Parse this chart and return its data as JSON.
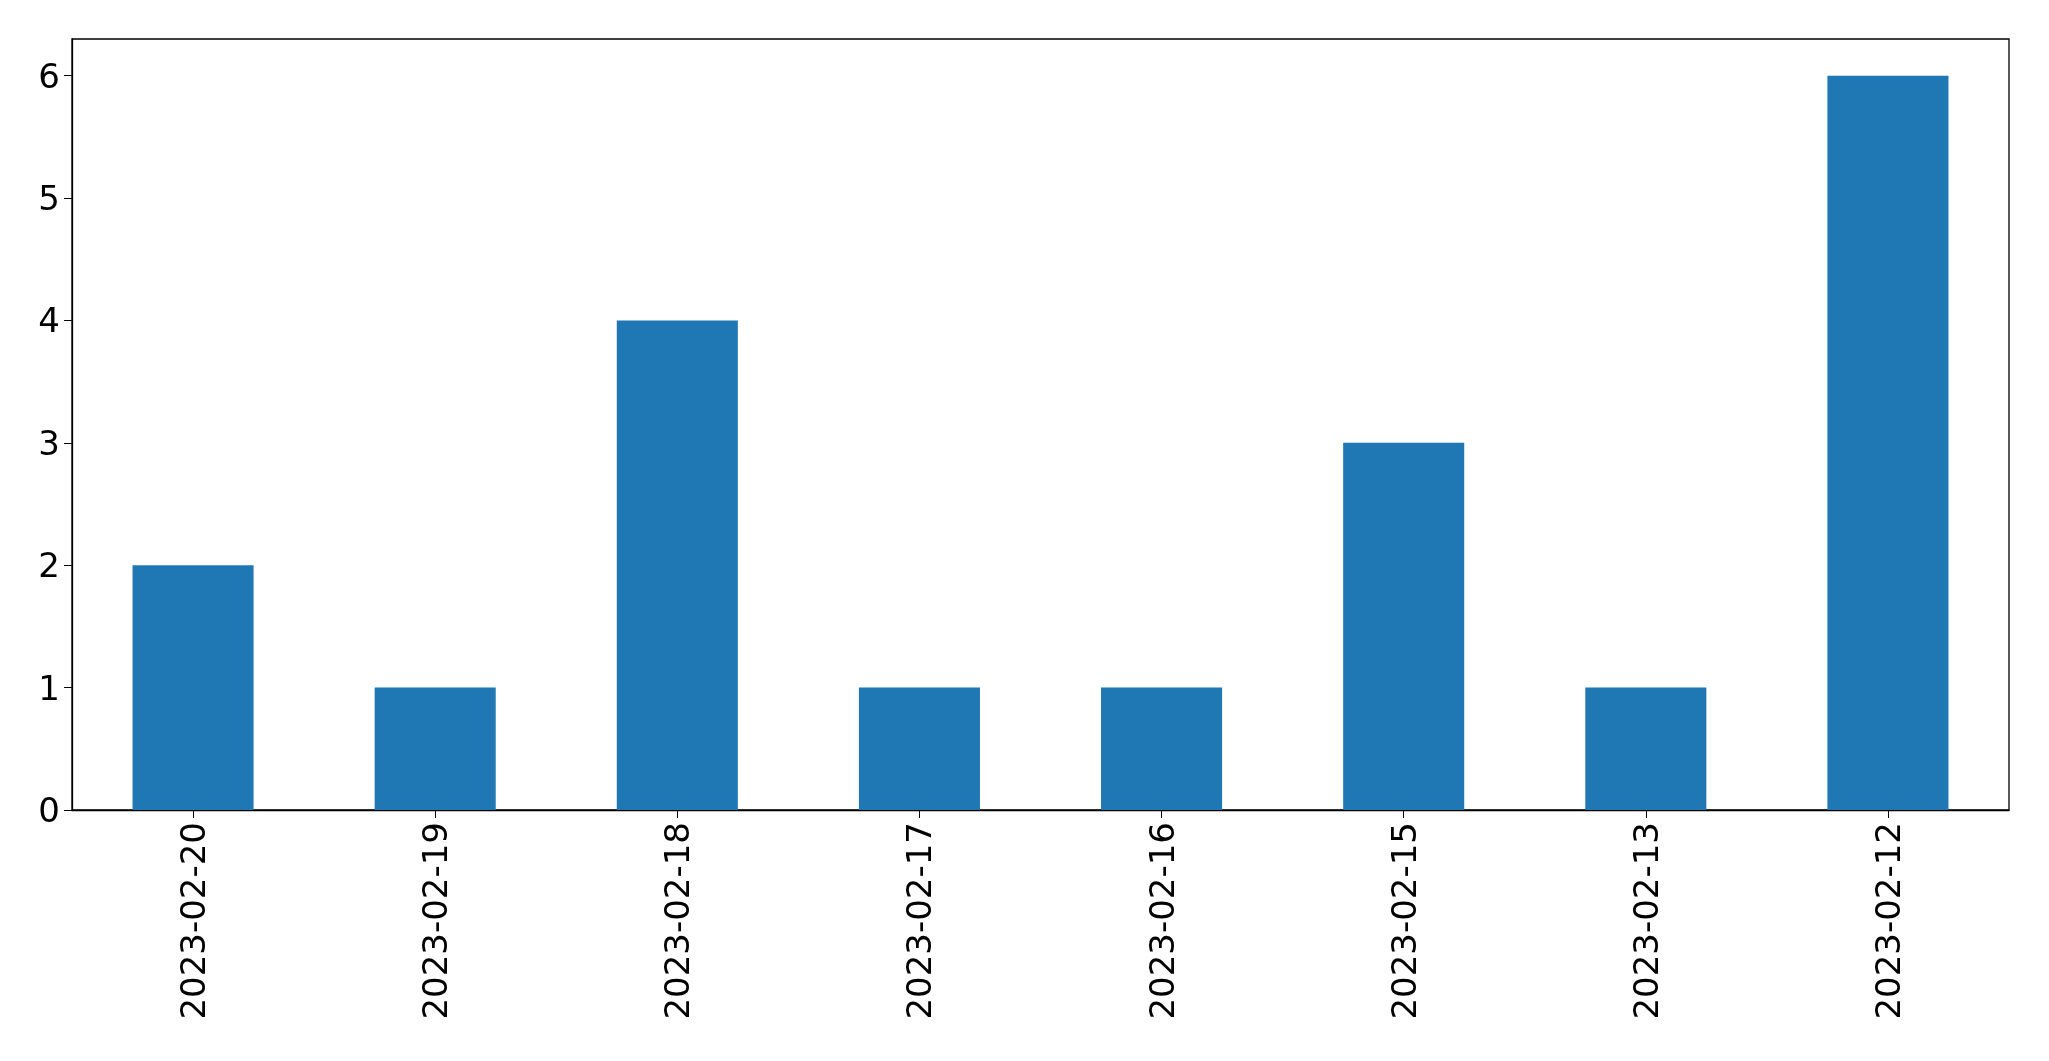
{
  "chart_data": {
    "type": "bar",
    "categories": [
      "2023-02-20",
      "2023-02-19",
      "2023-02-18",
      "2023-02-17",
      "2023-02-16",
      "2023-02-15",
      "2023-02-13",
      "2023-02-12"
    ],
    "values": [
      2,
      1,
      4,
      1,
      1,
      3,
      1,
      6
    ],
    "color": "#1f77b4",
    "ylim": [
      0,
      6.3
    ],
    "yticks": [
      0,
      1,
      2,
      3,
      4,
      5,
      6
    ],
    "grid": false
  }
}
